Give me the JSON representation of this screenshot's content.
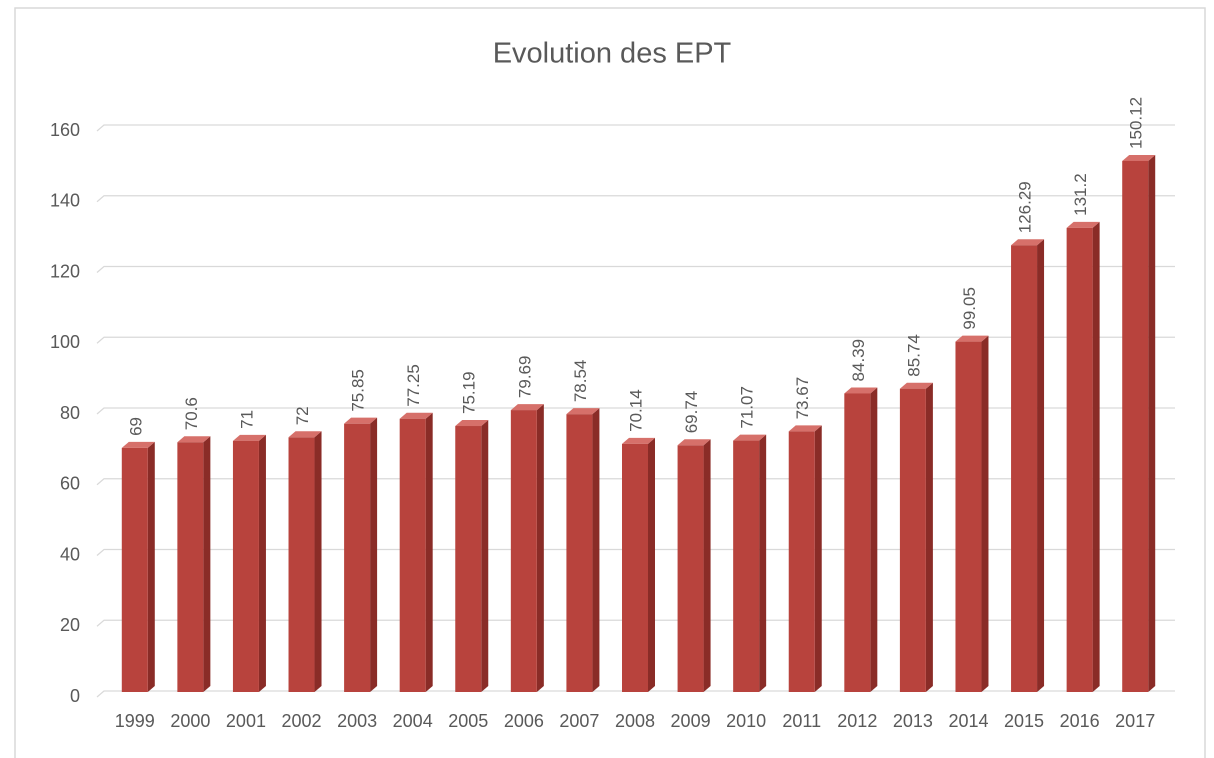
{
  "chart_data": {
    "type": "bar",
    "title": "Evolution des EPT",
    "categories": [
      "1999",
      "2000",
      "2001",
      "2002",
      "2003",
      "2004",
      "2005",
      "2006",
      "2007",
      "2008",
      "2009",
      "2010",
      "2011",
      "2012",
      "2013",
      "2014",
      "2015",
      "2016",
      "2017"
    ],
    "values": [
      69,
      70.6,
      71,
      72,
      75.85,
      77.25,
      75.19,
      79.69,
      78.54,
      70.14,
      69.74,
      71.07,
      73.67,
      84.39,
      85.74,
      99.05,
      126.29,
      131.2,
      150.12
    ],
    "color": "#b8433d",
    "ylim": [
      0,
      160
    ],
    "yticks": [
      0,
      20,
      40,
      60,
      80,
      100,
      120,
      140,
      160
    ],
    "grid": true
  }
}
